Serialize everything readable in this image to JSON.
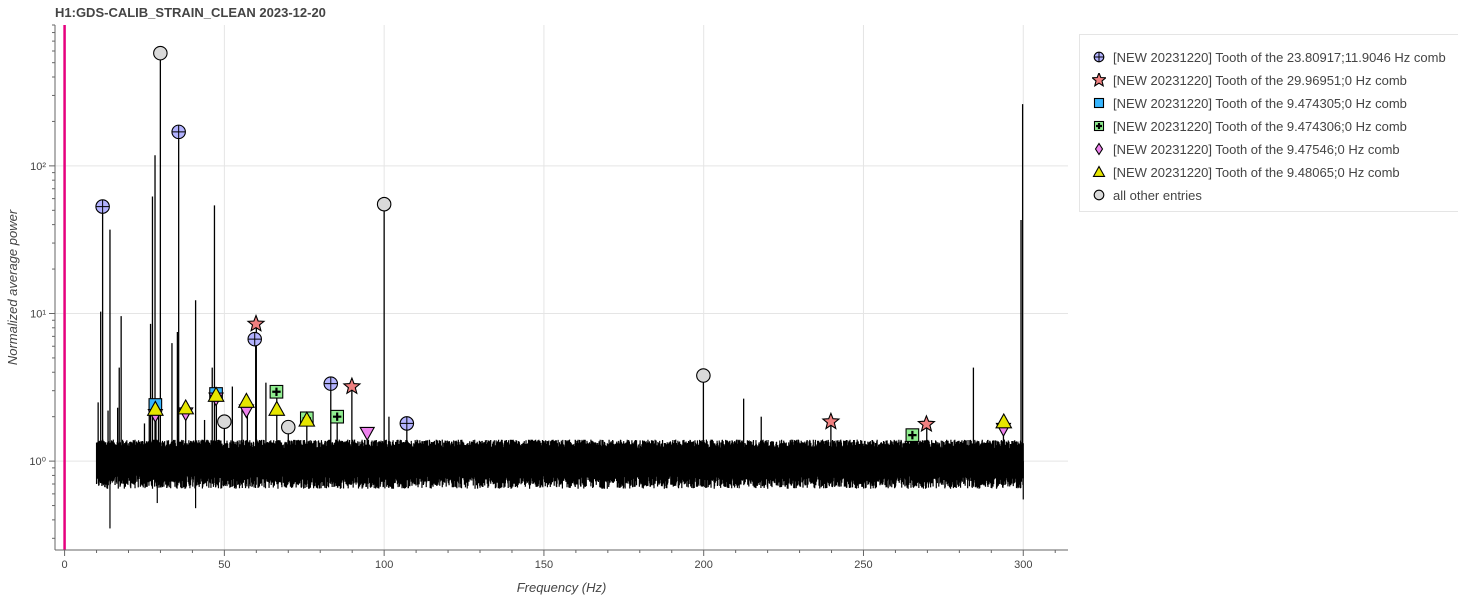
{
  "chart_data": {
    "type": "line",
    "title": "H1:GDS-CALIB_STRAIN_CLEAN 2023-12-20",
    "xlabel": "Frequency (Hz)",
    "ylabel": "Normalized average power",
    "xlim": [
      -3,
      314
    ],
    "ylim": [
      0.25,
      900
    ],
    "yscale": "log",
    "grid": true,
    "legend_position": "right, outside plot",
    "x_ticks": [
      0,
      50,
      100,
      150,
      200,
      250,
      300
    ],
    "x_tick_labels": [
      "0",
      "50",
      "100",
      "150",
      "200",
      "250",
      "300"
    ],
    "y_ticks": [
      1,
      10,
      100
    ],
    "y_tick_labels": [
      "10⁰",
      "10¹",
      "10²"
    ],
    "vertical_marker": {
      "x": 0,
      "color": "#e6007e"
    },
    "spectrum": {
      "name": "Normalized average power",
      "color": "#000000",
      "x_range": [
        10,
        300
      ],
      "noise_floor_range": [
        0.65,
        1.4
      ],
      "lines": [
        {
          "x": 10.5,
          "y": 2.5
        },
        {
          "x": 11.3,
          "y": 10.3
        },
        {
          "x": 11.9,
          "y": 53
        },
        {
          "x": 13.6,
          "y": 2.2
        },
        {
          "x": 14.2,
          "y": 37
        },
        {
          "x": 16.6,
          "y": 2.3
        },
        {
          "x": 17.1,
          "y": 4.3
        },
        {
          "x": 17.7,
          "y": 9.6
        },
        {
          "x": 25.0,
          "y": 1.8
        },
        {
          "x": 26.5,
          "y": 2.2
        },
        {
          "x": 26.9,
          "y": 8.5
        },
        {
          "x": 27.5,
          "y": 62
        },
        {
          "x": 28.3,
          "y": 118
        },
        {
          "x": 28.6,
          "y": 2.5
        },
        {
          "x": 29.4,
          "y": 2.2
        },
        {
          "x": 29.97,
          "y": 580
        },
        {
          "x": 33.6,
          "y": 6.3
        },
        {
          "x": 35.7,
          "y": 170
        },
        {
          "x": 35.3,
          "y": 7.5
        },
        {
          "x": 37.9,
          "y": 2.5
        },
        {
          "x": 41.0,
          "y": 12.3
        },
        {
          "x": 43.8,
          "y": 1.9
        },
        {
          "x": 46.2,
          "y": 4.3
        },
        {
          "x": 46.9,
          "y": 54
        },
        {
          "x": 47.5,
          "y": 2.7
        },
        {
          "x": 50.0,
          "y": 1.85
        },
        {
          "x": 52.5,
          "y": 3.2
        },
        {
          "x": 55.5,
          "y": 2.3
        },
        {
          "x": 57.2,
          "y": 2.1
        },
        {
          "x": 59.8,
          "y": 6.7
        },
        {
          "x": 60.0,
          "y": 8.5
        },
        {
          "x": 63.0,
          "y": 3.4
        },
        {
          "x": 66.4,
          "y": 2.95
        },
        {
          "x": 70.0,
          "y": 1.7
        },
        {
          "x": 75.8,
          "y": 1.95
        },
        {
          "x": 83.3,
          "y": 3.35
        },
        {
          "x": 85.3,
          "y": 2.0
        },
        {
          "x": 89.9,
          "y": 3.2
        },
        {
          "x": 94.7,
          "y": 1.55
        },
        {
          "x": 100.0,
          "y": 55
        },
        {
          "x": 101.5,
          "y": 2.0
        },
        {
          "x": 107.1,
          "y": 1.8
        },
        {
          "x": 199.9,
          "y": 3.8
        },
        {
          "x": 212.5,
          "y": 2.65
        },
        {
          "x": 218.0,
          "y": 2.0
        },
        {
          "x": 239.8,
          "y": 1.85
        },
        {
          "x": 265.3,
          "y": 1.5
        },
        {
          "x": 269.8,
          "y": 1.78
        },
        {
          "x": 284.4,
          "y": 4.3
        },
        {
          "x": 293.8,
          "y": 1.85
        },
        {
          "x": 299.3,
          "y": 43
        },
        {
          "x": 299.8,
          "y": 262
        }
      ]
    },
    "series": [
      {
        "name": "[NEW 20231220] Tooth of the 23.80917;11.9046 Hz comb",
        "marker": "circle-cross",
        "color": "#b3b3ff",
        "points": [
          {
            "x": 11.9,
            "y": 53
          },
          {
            "x": 35.7,
            "y": 170
          },
          {
            "x": 59.5,
            "y": 6.7
          },
          {
            "x": 83.3,
            "y": 3.35
          },
          {
            "x": 107.1,
            "y": 1.8
          }
        ]
      },
      {
        "name": "[NEW 20231220] Tooth of the 29.96951;0 Hz comb",
        "marker": "star",
        "color": "#f08080",
        "points": [
          {
            "x": 59.9,
            "y": 8.5
          },
          {
            "x": 89.9,
            "y": 3.2
          },
          {
            "x": 239.8,
            "y": 1.85
          },
          {
            "x": 269.7,
            "y": 1.78
          }
        ]
      },
      {
        "name": "[NEW 20231220] Tooth of the 9.474305;0 Hz comb",
        "marker": "square",
        "color": "#38b6ff",
        "points": [
          {
            "x": 28.4,
            "y": 2.4
          },
          {
            "x": 47.4,
            "y": 2.85
          }
        ]
      },
      {
        "name": "[NEW 20231220] Tooth of the 9.474306;0 Hz comb",
        "marker": "square-cross",
        "color": "#90ee90",
        "points": [
          {
            "x": 66.3,
            "y": 2.95
          },
          {
            "x": 75.8,
            "y": 1.95
          },
          {
            "x": 85.3,
            "y": 2.0
          },
          {
            "x": 265.3,
            "y": 1.5
          }
        ]
      },
      {
        "name": "[NEW 20231220] Tooth of the 9.47546;0 Hz comb",
        "marker": "inverted-triangle",
        "color": "#ee82ee",
        "points": [
          {
            "x": 28.4,
            "y": 2.05
          },
          {
            "x": 37.9,
            "y": 2.1
          },
          {
            "x": 47.4,
            "y": 2.65
          },
          {
            "x": 56.9,
            "y": 2.2
          },
          {
            "x": 94.7,
            "y": 1.55
          },
          {
            "x": 293.8,
            "y": 1.65
          }
        ]
      },
      {
        "name": "[NEW 20231220] Tooth of the 9.48065;0 Hz comb",
        "marker": "triangle",
        "color": "#e6e600",
        "points": [
          {
            "x": 28.4,
            "y": 2.25
          },
          {
            "x": 37.9,
            "y": 2.3
          },
          {
            "x": 47.4,
            "y": 2.8
          },
          {
            "x": 56.9,
            "y": 2.55
          },
          {
            "x": 66.4,
            "y": 2.25
          },
          {
            "x": 75.8,
            "y": 1.9
          },
          {
            "x": 293.9,
            "y": 1.85
          }
        ]
      },
      {
        "name": "all other entries",
        "marker": "circle",
        "color": "#d9d9d9",
        "points": [
          {
            "x": 29.97,
            "y": 580
          },
          {
            "x": 50.0,
            "y": 1.85
          },
          {
            "x": 70.0,
            "y": 1.7
          },
          {
            "x": 100.0,
            "y": 55
          },
          {
            "x": 199.9,
            "y": 3.8
          }
        ]
      }
    ]
  }
}
